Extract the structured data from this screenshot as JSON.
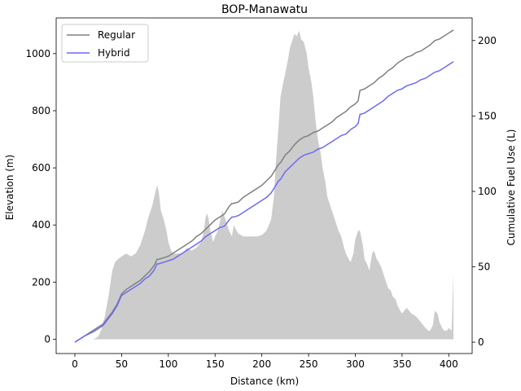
{
  "chart_data": {
    "type": "line",
    "title": "BOP-Manawatu",
    "xlabel": "Distance (km)",
    "ylabel": "Elevation (m)",
    "y2label": "Cumulative Fuel Use (L)",
    "xlim": [
      -20,
      425
    ],
    "ylim": [
      -50,
      1125
    ],
    "y2lim": [
      -7.5,
      215
    ],
    "x_ticks": [
      0,
      50,
      100,
      150,
      200,
      250,
      300,
      350,
      400
    ],
    "y_ticks": [
      0,
      200,
      400,
      600,
      800,
      1000
    ],
    "y2_ticks": [
      0,
      50,
      100,
      150,
      200
    ],
    "grid": false,
    "legend_position": "upper-left",
    "elevation": {
      "color": "#cccccc",
      "x": [
        0,
        5,
        10,
        15,
        20,
        25,
        28,
        32,
        36,
        40,
        43,
        46,
        48,
        50,
        55,
        60,
        65,
        70,
        75,
        78,
        80,
        83,
        85,
        88,
        90,
        92,
        95,
        98,
        100,
        103,
        105,
        110,
        115,
        120,
        125,
        130,
        135,
        138,
        140,
        142,
        145,
        148,
        150,
        153,
        155,
        158,
        160,
        163,
        165,
        168,
        170,
        173,
        175,
        180,
        185,
        190,
        195,
        200,
        205,
        210,
        213,
        215,
        218,
        220,
        223,
        225,
        228,
        230,
        233,
        235,
        237,
        240,
        242,
        245,
        248,
        250,
        253,
        255,
        258,
        260,
        263,
        265,
        268,
        270,
        273,
        275,
        278,
        280,
        282,
        285,
        288,
        290,
        293,
        295,
        298,
        300,
        303,
        305,
        308,
        310,
        313,
        315,
        318,
        320,
        323,
        325,
        328,
        330,
        333,
        335,
        338,
        340,
        343,
        345,
        348,
        350,
        355,
        360,
        365,
        370,
        375,
        378,
        380,
        383,
        385,
        388,
        390,
        393,
        395,
        398,
        400,
        403,
        405
      ],
      "y": [
        0,
        0,
        0,
        0,
        0,
        10,
        30,
        80,
        150,
        240,
        270,
        280,
        285,
        290,
        300,
        290,
        300,
        330,
        380,
        420,
        440,
        470,
        500,
        540,
        510,
        450,
        420,
        380,
        340,
        310,
        300,
        300,
        300,
        320,
        310,
        320,
        340,
        380,
        430,
        440,
        380,
        340,
        360,
        380,
        410,
        450,
        430,
        400,
        380,
        360,
        400,
        380,
        370,
        360,
        360,
        360,
        360,
        365,
        380,
        420,
        500,
        620,
        750,
        850,
        900,
        930,
        980,
        1020,
        1050,
        1070,
        1060,
        1080,
        1050,
        1040,
        1000,
        950,
        900,
        850,
        750,
        700,
        650,
        600,
        550,
        500,
        470,
        450,
        420,
        400,
        380,
        360,
        320,
        300,
        280,
        270,
        300,
        350,
        380,
        380,
        330,
        280,
        260,
        240,
        300,
        310,
        280,
        270,
        250,
        230,
        200,
        180,
        170,
        150,
        140,
        120,
        100,
        90,
        110,
        90,
        80,
        60,
        40,
        30,
        30,
        50,
        100,
        90,
        60,
        40,
        30,
        30,
        40,
        30,
        230
      ]
    },
    "series": [
      {
        "name": "Regular",
        "color": "#808080",
        "x": [
          0,
          10,
          20,
          30,
          35,
          40,
          45,
          50,
          55,
          60,
          65,
          70,
          75,
          80,
          85,
          88,
          90,
          95,
          100,
          105,
          110,
          115,
          120,
          125,
          130,
          135,
          140,
          145,
          150,
          155,
          160,
          165,
          168,
          170,
          175,
          180,
          185,
          190,
          195,
          200,
          205,
          210,
          215,
          218,
          220,
          225,
          230,
          235,
          240,
          245,
          250,
          255,
          260,
          265,
          270,
          275,
          280,
          285,
          290,
          295,
          300,
          303,
          305,
          310,
          315,
          320,
          325,
          330,
          335,
          340,
          345,
          350,
          355,
          360,
          365,
          370,
          375,
          380,
          385,
          390,
          395,
          400,
          405
        ],
        "y": [
          0,
          4,
          8,
          12,
          16,
          20,
          25,
          32,
          35,
          37,
          39,
          41,
          44,
          47,
          51,
          55,
          55,
          56,
          57,
          59,
          61,
          63,
          65,
          67,
          70,
          72,
          75,
          78,
          81,
          83,
          85,
          90,
          92,
          92,
          93,
          96,
          98,
          100,
          102,
          104,
          107,
          110,
          115,
          118,
          119,
          124,
          127,
          131,
          134,
          136,
          137,
          139,
          140,
          142,
          144,
          146,
          149,
          151,
          153,
          156,
          158,
          160,
          167,
          168,
          170,
          172,
          175,
          177,
          180,
          182,
          185,
          187,
          189,
          190,
          192,
          193,
          195,
          197,
          200,
          201,
          203,
          205,
          207
        ]
      },
      {
        "name": "Hybrid",
        "color": "#6b6bf5",
        "x": [
          0,
          10,
          20,
          30,
          35,
          40,
          45,
          50,
          55,
          60,
          65,
          70,
          75,
          80,
          85,
          88,
          90,
          95,
          100,
          105,
          110,
          115,
          120,
          125,
          130,
          135,
          140,
          145,
          150,
          155,
          160,
          165,
          168,
          170,
          175,
          180,
          185,
          190,
          195,
          200,
          205,
          210,
          215,
          218,
          220,
          225,
          230,
          235,
          240,
          245,
          250,
          255,
          260,
          265,
          270,
          275,
          280,
          285,
          290,
          295,
          300,
          303,
          305,
          310,
          315,
          320,
          325,
          330,
          335,
          340,
          345,
          350,
          355,
          360,
          365,
          370,
          375,
          380,
          385,
          390,
          395,
          400,
          405
        ],
        "y": [
          0,
          4,
          7,
          11,
          15,
          19,
          24,
          31,
          33,
          35,
          37,
          39,
          42,
          44,
          48,
          52,
          52,
          53,
          54,
          55,
          57,
          59,
          61,
          63,
          65,
          67,
          70,
          72,
          74,
          76,
          77,
          81,
          83,
          83,
          84,
          86,
          88,
          90,
          92,
          94,
          96,
          99,
          104,
          107,
          108,
          113,
          116,
          119,
          122,
          124,
          125,
          126,
          128,
          129,
          131,
          133,
          135,
          137,
          138,
          141,
          143,
          145,
          151,
          152,
          154,
          156,
          158,
          160,
          163,
          165,
          167,
          168,
          170,
          171,
          172,
          174,
          175,
          177,
          179,
          180,
          182,
          184,
          186
        ]
      }
    ]
  }
}
